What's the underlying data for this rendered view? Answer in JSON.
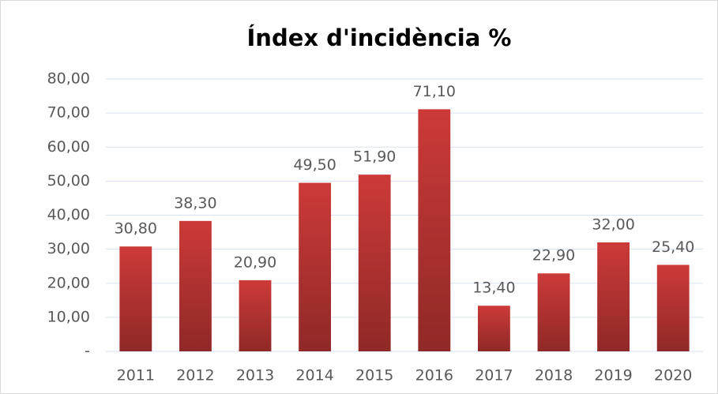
{
  "chart_data": {
    "type": "bar",
    "title": "Índex d'incidència %",
    "categories": [
      "2011",
      "2012",
      "2013",
      "2014",
      "2015",
      "2016",
      "2017",
      "2018",
      "2019",
      "2020"
    ],
    "values": [
      30.8,
      38.3,
      20.9,
      49.5,
      51.9,
      71.1,
      13.4,
      22.9,
      32.0,
      25.4
    ],
    "value_labels": [
      "30,80",
      "38,30",
      "20,90",
      "49,50",
      "51,90",
      "71,10",
      "13,40",
      "22,90",
      "32,00",
      "25,40"
    ],
    "color": "#cc3a38",
    "ylim": [
      0,
      80
    ],
    "yticks": [
      {
        "value": 0,
        "label": "-"
      },
      {
        "value": 10,
        "label": "10,00"
      },
      {
        "value": 20,
        "label": "20,00"
      },
      {
        "value": 30,
        "label": "30,00"
      },
      {
        "value": 40,
        "label": "40,00"
      },
      {
        "value": 50,
        "label": "50,00"
      },
      {
        "value": 60,
        "label": "60,00"
      },
      {
        "value": 70,
        "label": "70,00"
      },
      {
        "value": 80,
        "label": "80,00"
      }
    ],
    "grid": true
  }
}
